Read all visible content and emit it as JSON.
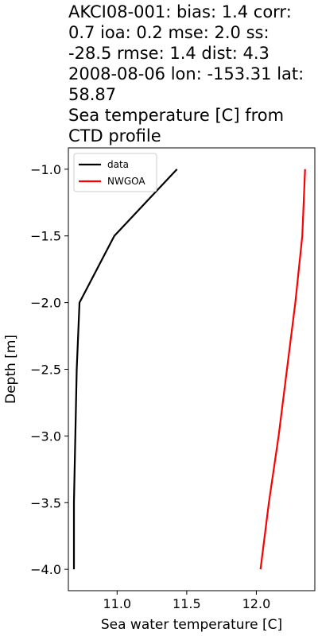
{
  "chart_data": {
    "type": "line",
    "title_lines": [
      "AKCI08-001: bias: 1.4  corr:",
      "0.7  ioa: 0.2  mse: 2.0  ss:",
      "-28.5  rmse: 1.4  dist: 4.3",
      "2008-08-06 lon: -153.31 lat:",
      "58.87",
      "Sea temperature [C] from",
      "CTD profile"
    ],
    "xlabel": "Sea water temperature [C]",
    "ylabel": "Depth [m]",
    "xlim": [
      10.65,
      12.42
    ],
    "ylim": [
      -4.16,
      -0.84
    ],
    "xticks": [
      11.0,
      11.5,
      12.0
    ],
    "xtick_labels": [
      "11.0",
      "11.5",
      "12.0"
    ],
    "yticks": [
      -1.0,
      -1.5,
      -2.0,
      -2.5,
      -3.0,
      -3.5,
      -4.0
    ],
    "ytick_labels": [
      "−1.0",
      "−1.5",
      "−2.0",
      "−2.5",
      "−3.0",
      "−3.5",
      "−4.0"
    ],
    "grid": false,
    "legend_position": "upper-left",
    "series": [
      {
        "name": "data",
        "color": "#000000",
        "x": [
          11.43,
          10.98,
          10.73,
          10.71,
          10.7,
          10.69,
          10.69
        ],
        "y": [
          -1.0,
          -1.5,
          -2.0,
          -2.5,
          -3.0,
          -3.5,
          -4.0
        ]
      },
      {
        "name": "NWGOA",
        "color": "#ff0000",
        "x": [
          12.35,
          12.33,
          12.28,
          12.22,
          12.16,
          12.09,
          12.03
        ],
        "y": [
          -1.0,
          -1.5,
          -2.0,
          -2.5,
          -3.0,
          -3.5,
          -4.0
        ]
      }
    ]
  }
}
